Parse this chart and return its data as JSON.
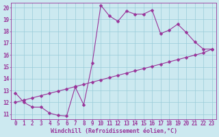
{
  "xlabel": "Windchill (Refroidissement éolien,°C)",
  "xlim": [
    -0.5,
    23.5
  ],
  "ylim": [
    10.6,
    20.4
  ],
  "xticks": [
    0,
    1,
    2,
    3,
    4,
    5,
    6,
    7,
    8,
    9,
    10,
    11,
    12,
    13,
    14,
    15,
    16,
    17,
    18,
    19,
    20,
    21,
    22,
    23
  ],
  "yticks": [
    11,
    12,
    13,
    14,
    15,
    16,
    17,
    18,
    19,
    20
  ],
  "line_color": "#993399",
  "bg_color": "#cce9f0",
  "grid_color": "#99ccd9",
  "line1_x": [
    0,
    1,
    2,
    3,
    4,
    5,
    6,
    7,
    8,
    9,
    10,
    11,
    12,
    13,
    14,
    15,
    16,
    17,
    18,
    19,
    20,
    21,
    22,
    23
  ],
  "line1_y": [
    12.8,
    12.0,
    11.6,
    11.6,
    11.1,
    10.9,
    10.85,
    13.3,
    11.8,
    15.3,
    20.2,
    19.3,
    18.85,
    19.7,
    19.45,
    19.45,
    19.8,
    17.8,
    18.1,
    18.6,
    17.9,
    17.1,
    16.5,
    16.5
  ],
  "line2_x": [
    0,
    1,
    2,
    3,
    4,
    5,
    6,
    7,
    8,
    9,
    10,
    11,
    12,
    13,
    14,
    15,
    16,
    17,
    18,
    19,
    20,
    21,
    22,
    23
  ],
  "line2_y": [
    12.0,
    12.19,
    12.38,
    12.57,
    12.76,
    12.95,
    13.14,
    13.33,
    13.52,
    13.71,
    13.9,
    14.09,
    14.28,
    14.47,
    14.66,
    14.85,
    15.04,
    15.23,
    15.42,
    15.61,
    15.8,
    15.99,
    16.18,
    16.5
  ],
  "marker": "D",
  "marker_size": 2.5,
  "font_size": 6,
  "tick_font_size": 5.5,
  "line_width": 0.8
}
